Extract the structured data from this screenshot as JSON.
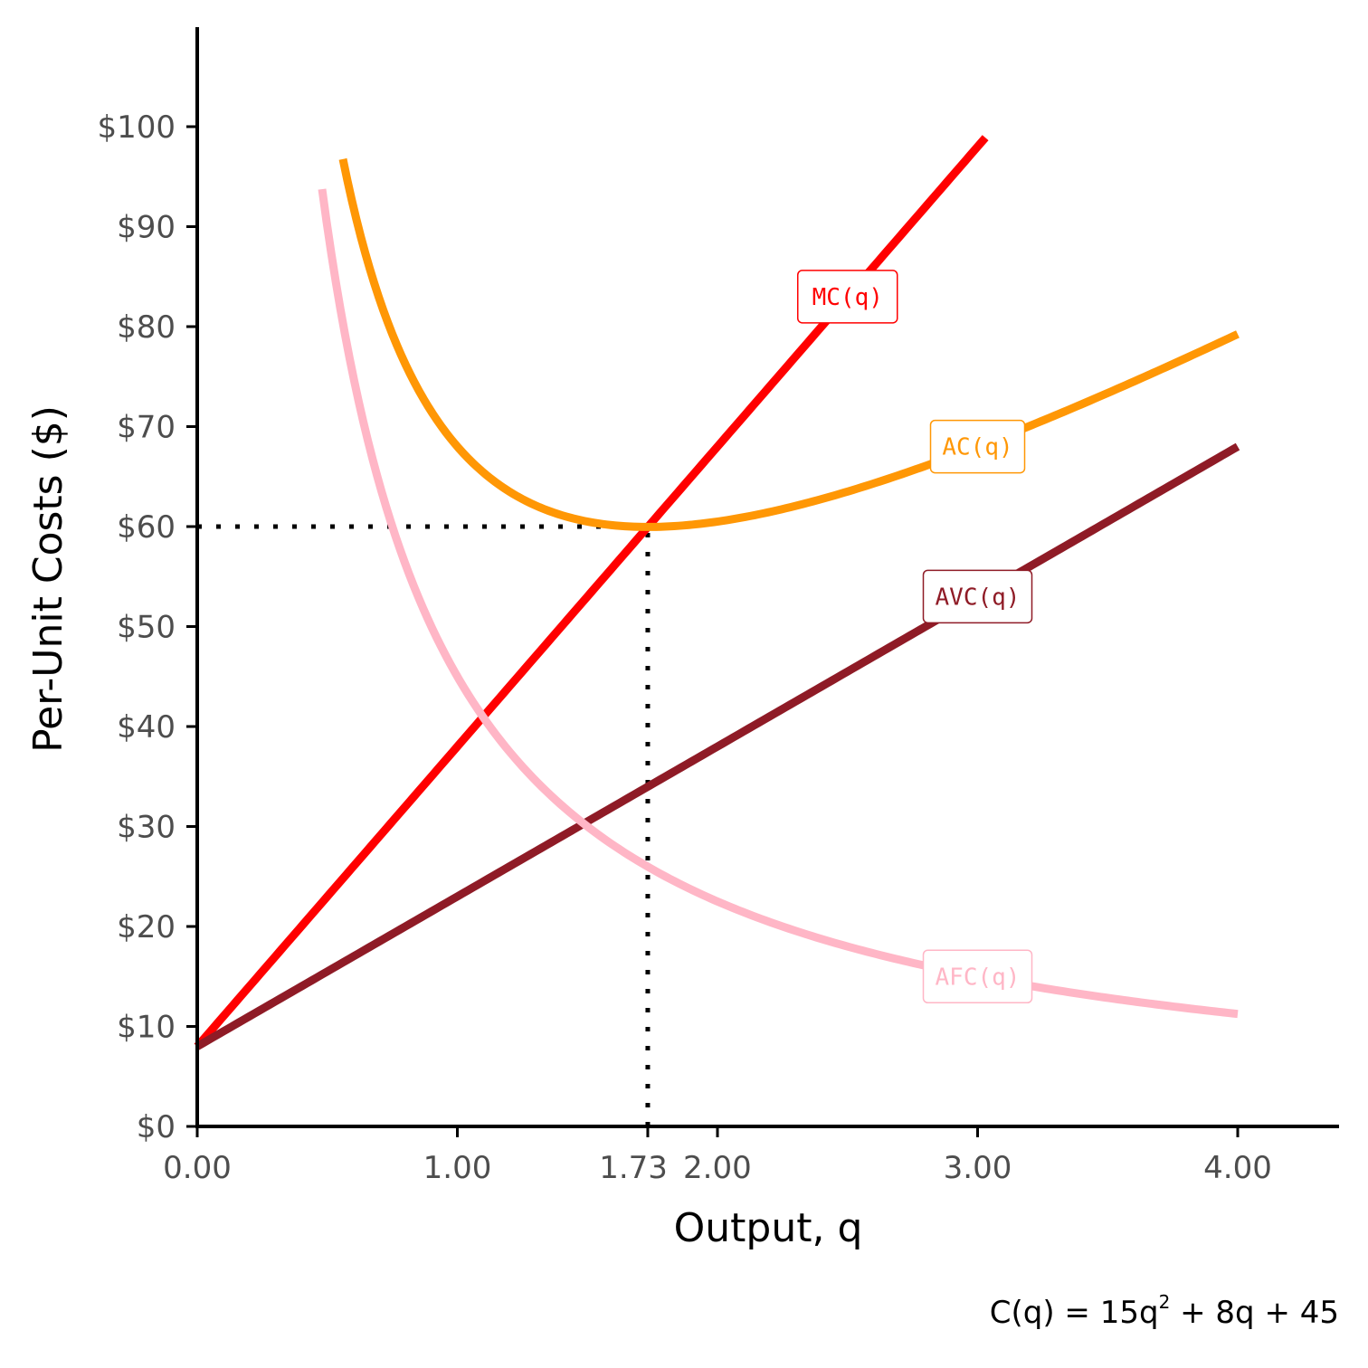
{
  "chart_data": {
    "type": "line",
    "xlabel": "Output, q",
    "ylabel": "Per-Unit Costs ($)",
    "xlim": [
      0,
      4.4
    ],
    "ylim": [
      0,
      110
    ],
    "x_ticks": [
      {
        "value": 0,
        "label": "0.00"
      },
      {
        "value": 1,
        "label": "1.00"
      },
      {
        "value": 1.732,
        "label": "1.73"
      },
      {
        "value": 2,
        "label": "2.00"
      },
      {
        "value": 3,
        "label": "3.00"
      },
      {
        "value": 4,
        "label": "4.00"
      }
    ],
    "y_ticks": [
      {
        "value": 0,
        "label": "$0"
      },
      {
        "value": 10,
        "label": "$10"
      },
      {
        "value": 20,
        "label": "$20"
      },
      {
        "value": 30,
        "label": "$30"
      },
      {
        "value": 40,
        "label": "$40"
      },
      {
        "value": 50,
        "label": "$50"
      },
      {
        "value": 60,
        "label": "$60"
      },
      {
        "value": 70,
        "label": "$70"
      },
      {
        "value": 80,
        "label": "$80"
      },
      {
        "value": 90,
        "label": "$90"
      },
      {
        "value": 100,
        "label": "$100"
      }
    ],
    "series": [
      {
        "name": "MC(q)",
        "formula": "30q + 8",
        "color": "#FF0000",
        "x": [
          0,
          0.5,
          1,
          1.5,
          1.732,
          2,
          2.5,
          3,
          3.03
        ],
        "values": [
          8,
          23,
          38,
          53,
          59.96,
          68,
          83,
          98,
          98.9
        ],
        "label_at": {
          "x": 2.5,
          "y": 83
        }
      },
      {
        "name": "AC(q)",
        "formula": "15q + 8 + 45/q",
        "color": "#FF9705",
        "x": [
          0.56,
          0.75,
          1,
          1.25,
          1.5,
          1.732,
          2,
          2.5,
          3,
          3.5,
          4
        ],
        "values": [
          96.76,
          79.25,
          68,
          62.75,
          60.5,
          59.96,
          60.5,
          63.5,
          68,
          73.36,
          79.25
        ],
        "label_at": {
          "x": 3.0,
          "y": 68
        }
      },
      {
        "name": "AVC(q)",
        "formula": "15q + 8",
        "color": "#8F1B26",
        "x": [
          0,
          1,
          2,
          3,
          4
        ],
        "values": [
          8,
          23,
          38,
          53,
          68
        ],
        "label_at": {
          "x": 3.0,
          "y": 53
        }
      },
      {
        "name": "AFC(q)",
        "formula": "45/q",
        "color": "#FFB6C6",
        "x": [
          0.48,
          0.75,
          1,
          1.5,
          2,
          2.5,
          3,
          3.5,
          4
        ],
        "values": [
          93.75,
          60,
          45,
          30,
          22.5,
          18,
          15,
          12.86,
          11.25
        ],
        "label_at": {
          "x": 3.0,
          "y": 15
        }
      }
    ],
    "reference_lines": [
      {
        "type": "horizontal",
        "y": 60,
        "x_from": 0,
        "x_to": 1.732,
        "style": "dotted"
      },
      {
        "type": "vertical",
        "x": 1.732,
        "y_from": 0,
        "y_to": 60,
        "style": "dotted"
      }
    ],
    "caption": {
      "prefix": "C(q) = 15q",
      "sup": "2",
      "suffix": " + 8q + 45"
    }
  }
}
